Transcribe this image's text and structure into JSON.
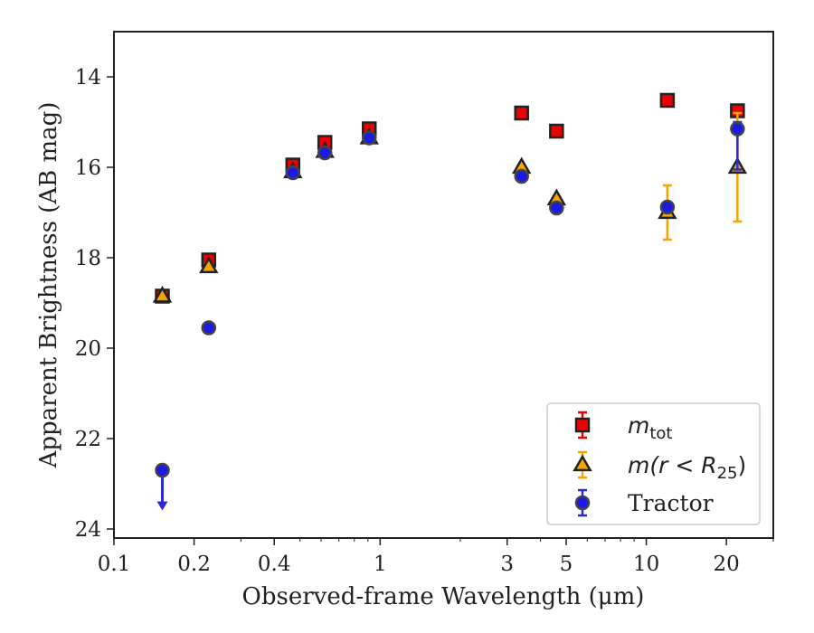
{
  "chart_data": {
    "type": "scatter",
    "xlabel": "Observed-frame Wavelength (μm)",
    "ylabel": "Apparent Brightness (AB mag)",
    "x_scale": "log",
    "xlim": [
      0.1,
      30
    ],
    "ylim": [
      24.2,
      13.0
    ],
    "y_inverted": true,
    "x_ticks": [
      {
        "value": 0.1,
        "label": "0.1"
      },
      {
        "value": 0.2,
        "label": "0.2"
      },
      {
        "value": 0.4,
        "label": "0.4"
      },
      {
        "value": 1,
        "label": "1"
      },
      {
        "value": 3,
        "label": "3"
      },
      {
        "value": 5,
        "label": "5"
      },
      {
        "value": 10,
        "label": "10"
      },
      {
        "value": 20,
        "label": "20"
      }
    ],
    "y_ticks": [
      {
        "value": 14,
        "label": "14"
      },
      {
        "value": 16,
        "label": "16"
      },
      {
        "value": 18,
        "label": "18"
      },
      {
        "value": 20,
        "label": "20"
      },
      {
        "value": 22,
        "label": "22"
      },
      {
        "value": 24,
        "label": "24"
      }
    ],
    "grid": false,
    "legend_position": "lower-right",
    "series": [
      {
        "name": "m_tot",
        "legend_main": "m",
        "legend_sub": "tot",
        "marker": "square",
        "fill": "#ee0000",
        "edge": "#222222",
        "points": [
          {
            "x": 0.152,
            "y": 18.85,
            "err": 0.08
          },
          {
            "x": 0.227,
            "y": 18.05,
            "err": 0.08
          },
          {
            "x": 0.47,
            "y": 15.95,
            "err": 0.05
          },
          {
            "x": 0.62,
            "y": 15.45,
            "err": 0.05
          },
          {
            "x": 0.91,
            "y": 15.15,
            "err": 0.05
          },
          {
            "x": 3.4,
            "y": 14.8,
            "err": 0.05
          },
          {
            "x": 4.6,
            "y": 15.2,
            "err": 0.05
          },
          {
            "x": 12.0,
            "y": 14.52,
            "err": 0.05
          },
          {
            "x": 22.0,
            "y": 14.75,
            "err": 0.05
          }
        ]
      },
      {
        "name": "m(r<R25)",
        "legend_main": "m(r < R",
        "legend_sub": "25",
        "legend_tail": ")",
        "marker": "triangle",
        "fill": "#f5a500",
        "edge": "#222222",
        "errcolor": "#f5a500",
        "points": [
          {
            "x": 0.152,
            "y": 18.85,
            "err": 0.05
          },
          {
            "x": 0.227,
            "y": 18.2,
            "err": 0.05
          },
          {
            "x": 0.47,
            "y": 16.1,
            "err": 0.05
          },
          {
            "x": 0.62,
            "y": 15.65,
            "err": 0.05
          },
          {
            "x": 0.91,
            "y": 15.35,
            "err": 0.05
          },
          {
            "x": 3.4,
            "y": 16.0,
            "err": 0.05
          },
          {
            "x": 4.6,
            "y": 16.7,
            "err": 0.05
          },
          {
            "x": 12.0,
            "y": 17.0,
            "err": 0.6
          },
          {
            "x": 22.0,
            "y": 16.0,
            "err": 1.2
          }
        ]
      },
      {
        "name": "Tractor",
        "legend_main": "Tractor",
        "marker": "circle",
        "fill": "#1a1ae6",
        "edge": "#444444",
        "errcolor": "#2a2ad0",
        "points": [
          {
            "x": 0.152,
            "y": 22.7,
            "upper_limit": true,
            "arrow_to": 23.55
          },
          {
            "x": 0.227,
            "y": 19.55,
            "err": 0.08
          },
          {
            "x": 0.47,
            "y": 16.12,
            "err": 0.05
          },
          {
            "x": 0.62,
            "y": 15.68,
            "err": 0.05
          },
          {
            "x": 0.91,
            "y": 15.35,
            "err": 0.05
          },
          {
            "x": 3.4,
            "y": 16.2,
            "err": 0.05
          },
          {
            "x": 4.6,
            "y": 16.9,
            "err": 0.05
          },
          {
            "x": 12.0,
            "y": 16.88,
            "err": 0.1
          },
          {
            "x": 22.0,
            "y": 15.15,
            "err": 0.15,
            "err_low": 0.9
          }
        ]
      }
    ]
  }
}
